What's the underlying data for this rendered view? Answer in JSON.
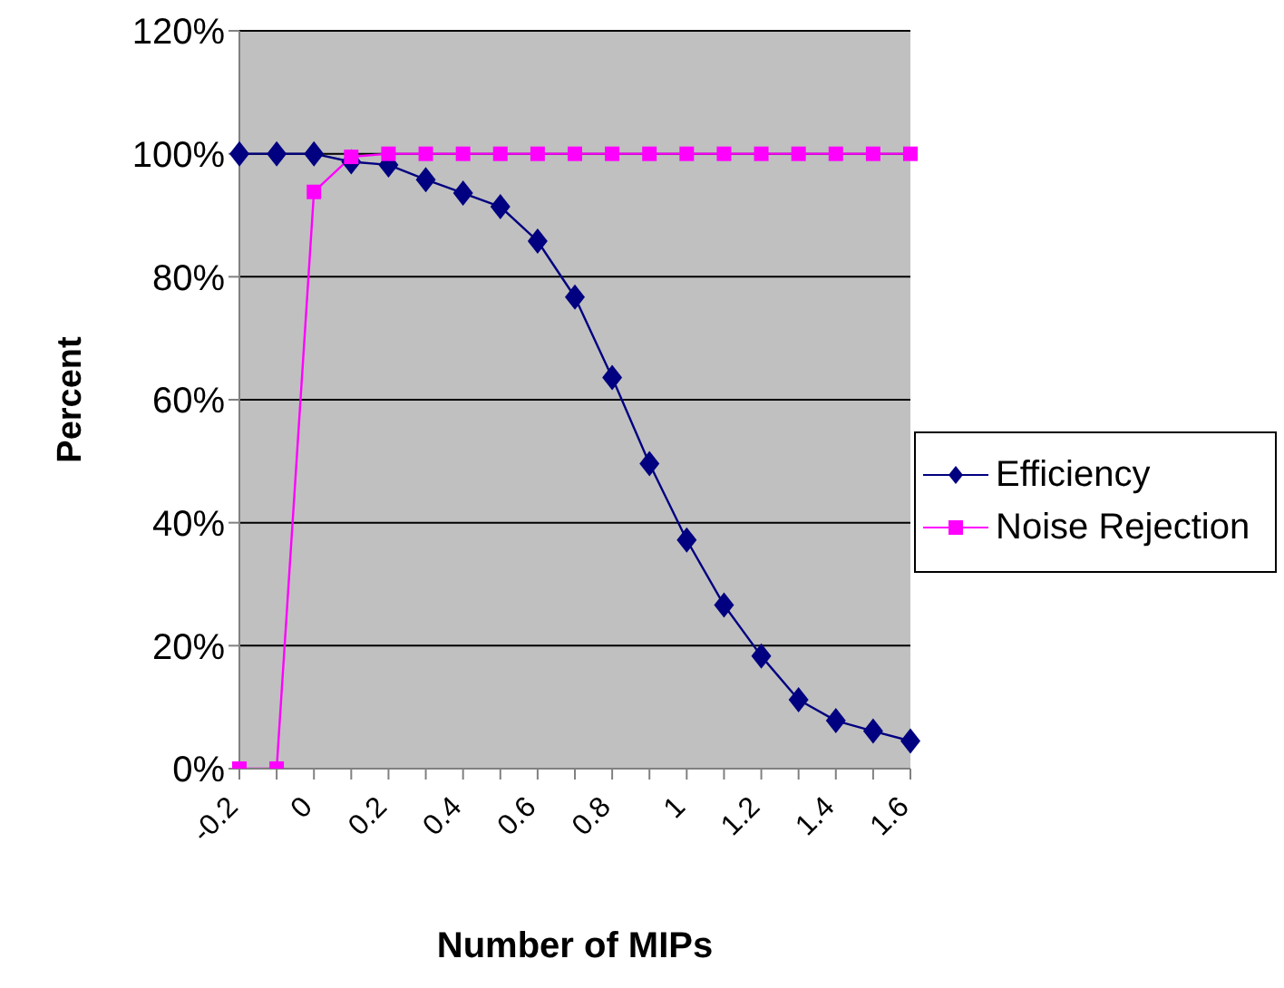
{
  "chart_data": {
    "type": "line",
    "xlabel": "Number of MIPs",
    "ylabel": "Percent",
    "categories": [
      "-0.2",
      null,
      "0",
      null,
      "0.2",
      null,
      "0.4",
      null,
      "0.6",
      null,
      "0.8",
      null,
      "1",
      null,
      "1.2",
      null,
      "1.4",
      null,
      "1.6"
    ],
    "series": [
      {
        "name": "Efficiency",
        "color": "#000080",
        "marker": "diamond",
        "values": [
          100,
          100,
          100,
          98.7,
          98.2,
          95.8,
          93.6,
          91.4,
          85.8,
          76.7,
          63.6,
          49.6,
          37.2,
          26.6,
          18.3,
          11.2,
          7.8,
          6.1,
          4.5
        ]
      },
      {
        "name": "Noise Rejection",
        "color": "#ff00ff",
        "marker": "square",
        "values": [
          0,
          0,
          93.8,
          99.5,
          100,
          100,
          100,
          100,
          100,
          100,
          100,
          100,
          100,
          100,
          100,
          100,
          100,
          100,
          100
        ]
      }
    ],
    "ylim": [
      0,
      120
    ],
    "yticks": [
      {
        "value": 0,
        "label": "0%"
      },
      {
        "value": 20,
        "label": "20%"
      },
      {
        "value": 40,
        "label": "40%"
      },
      {
        "value": 60,
        "label": "60%"
      },
      {
        "value": 80,
        "label": "80%"
      },
      {
        "value": 100,
        "label": "100%"
      },
      {
        "value": 120,
        "label": "120%"
      }
    ],
    "grid": "y",
    "legend": "right"
  }
}
